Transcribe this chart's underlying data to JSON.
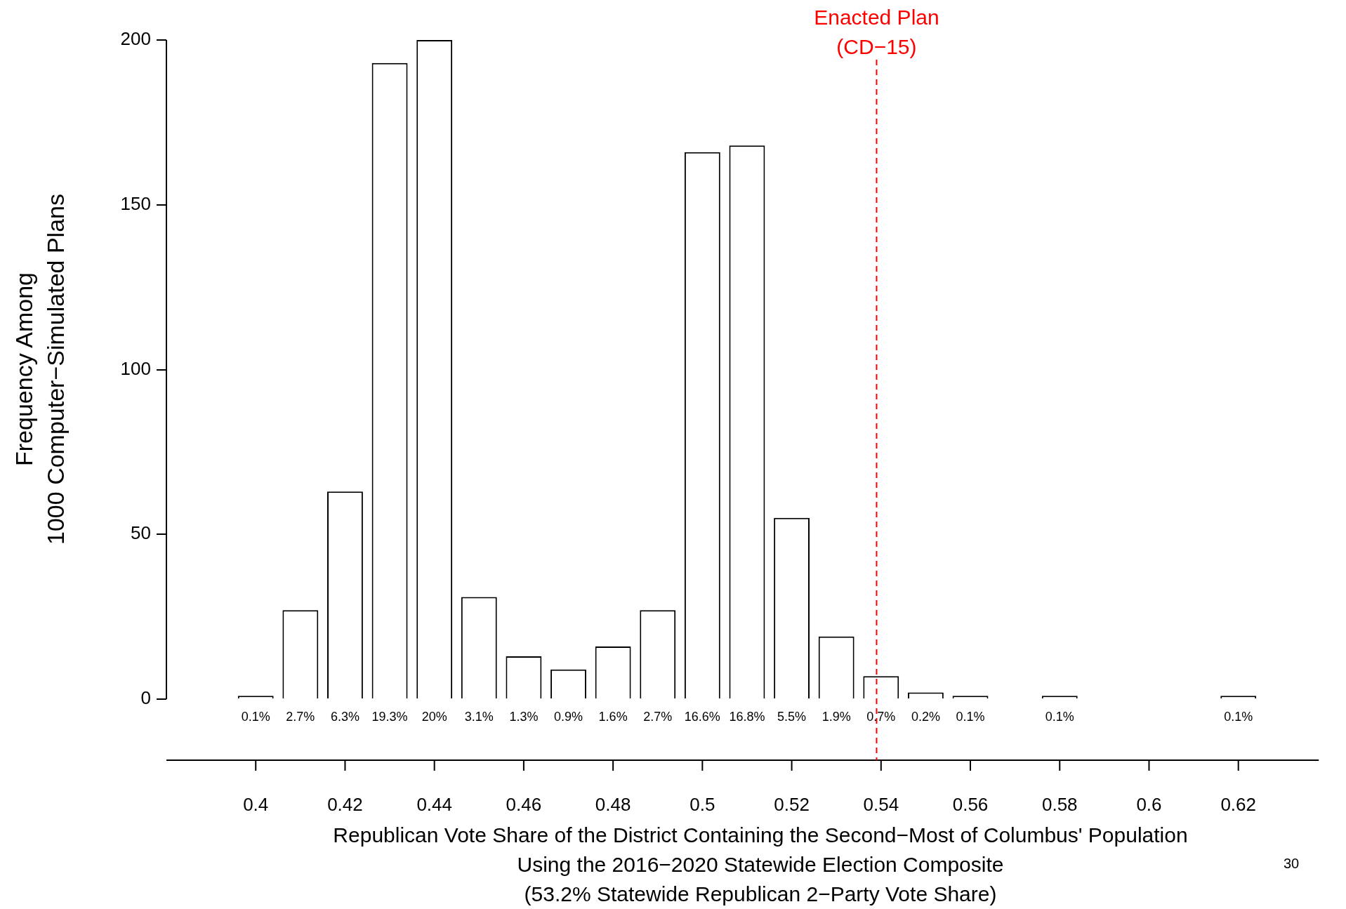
{
  "chart_data": {
    "type": "bar",
    "xlabel": "Republican Vote Share of the District Containing the Second−Most of Columbus' Population\nUsing the 2016−2020 Statewide Election Composite\n(53.2% Statewide Republican 2−Party Vote Share)",
    "ylabel": "Frequency Among\n1000 Computer−Simulated Plans",
    "x": [
      0.4,
      0.41,
      0.42,
      0.43,
      0.44,
      0.45,
      0.46,
      0.47,
      0.48,
      0.49,
      0.5,
      0.51,
      0.52,
      0.53,
      0.54,
      0.55,
      0.56,
      0.58,
      0.62
    ],
    "values": [
      1,
      27,
      63,
      193,
      200,
      31,
      13,
      9,
      16,
      27,
      166,
      168,
      55,
      19,
      7,
      2,
      1,
      1,
      1
    ],
    "color": "#ffffff",
    "xlim": [
      0.38,
      0.638
    ],
    "xticks": [
      0.4,
      0.42,
      0.44,
      0.46,
      0.48,
      0.5,
      0.52,
      0.54,
      0.56,
      0.58,
      0.6,
      0.62
    ],
    "ylim": [
      0,
      200
    ],
    "yticks": [
      0,
      50,
      100,
      150,
      200
    ],
    "ref_lines": [
      {
        "axis": "x",
        "value": 0.539,
        "label": "Enacted Plan\n(CD−15)",
        "color": "#ff0000",
        "line_style": "dashed"
      }
    ],
    "annotations": [
      "30",
      {
        "text": "0.1%",
        "x": 0.4,
        "y": 0
      },
      {
        "text": "2.7%",
        "x": 0.41,
        "y": 0
      },
      {
        "text": "6.3%",
        "x": 0.42,
        "y": 0
      },
      {
        "text": "19.3%",
        "x": 0.43,
        "y": 0
      },
      {
        "text": "20%",
        "x": 0.44,
        "y": 0
      },
      {
        "text": "3.1%",
        "x": 0.45,
        "y": 0
      },
      {
        "text": "1.3%",
        "x": 0.46,
        "y": 0
      },
      {
        "text": "0.9%",
        "x": 0.47,
        "y": 0
      },
      {
        "text": "1.6%",
        "x": 0.48,
        "y": 0
      },
      {
        "text": "2.7%",
        "x": 0.49,
        "y": 0
      },
      {
        "text": "16.6%",
        "x": 0.5,
        "y": 0
      },
      {
        "text": "16.8%",
        "x": 0.51,
        "y": 0
      },
      {
        "text": "5.5%",
        "x": 0.52,
        "y": 0
      },
      {
        "text": "1.9%",
        "x": 0.53,
        "y": 0
      },
      {
        "text": "0.7%",
        "x": 0.54,
        "y": 0
      },
      {
        "text": "0.2%",
        "x": 0.55,
        "y": 0
      },
      {
        "text": "0.1%",
        "x": 0.56,
        "y": 0
      },
      {
        "text": "0.1%",
        "x": 0.58,
        "y": 0
      },
      {
        "text": "0.1%",
        "x": 0.62,
        "y": 0
      }
    ]
  }
}
